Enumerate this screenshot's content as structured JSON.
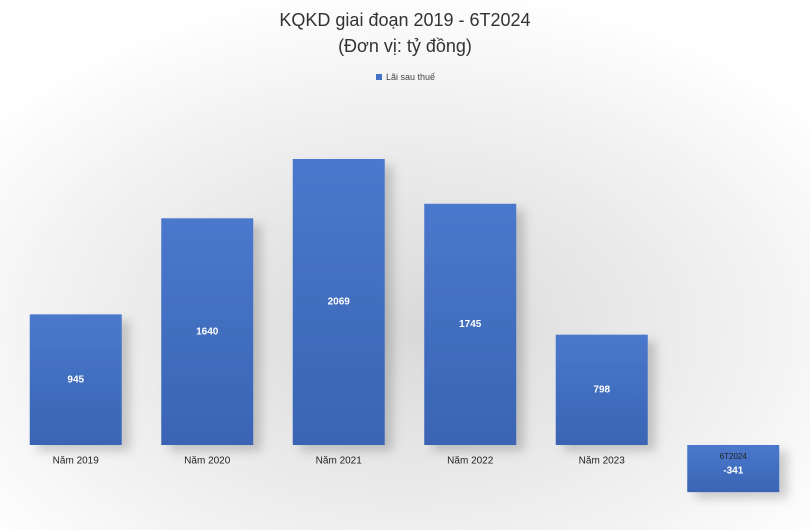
{
  "chart_data": {
    "type": "bar",
    "title": "KQKD giai đoạn 2019 - 6T2024",
    "subtitle": "(Đơn vị: tỷ đồng)",
    "categories": [
      "Năm 2019",
      "Năm 2020",
      "Năm 2021",
      "Năm 2022",
      "Năm 2023",
      "6T2024"
    ],
    "series": [
      {
        "name": "Lãi sau thuế",
        "color": "#4472c4",
        "values": [
          945,
          1640,
          2069,
          1745,
          798,
          -341
        ]
      }
    ],
    "legend": "top"
  }
}
